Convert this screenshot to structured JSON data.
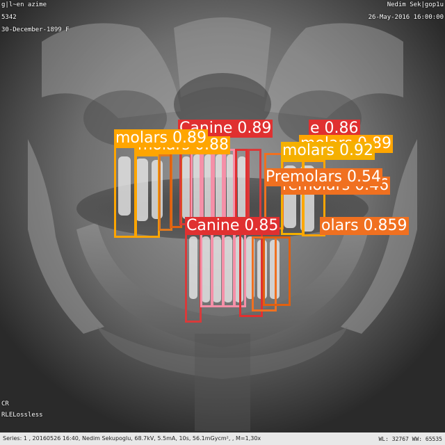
{
  "overlay": {
    "top_left_line1": "g|l~en azime",
    "top_left_line2": "5342",
    "top_left_line3": "30-December-1899 F",
    "top_right_line1": "Nedim Sek|gop1u",
    "top_right_line2": "26-May-2016 16:00:00",
    "bottom_left_line1": "CR",
    "bottom_left_line2": "RLELossless",
    "bottom_bar_text": "Series: 1 , 20160526 16:40, Nedim Sekupoglu, 68.7kV, 5.5mA, 10s, 56.1mGycm², , M=1,30x",
    "wl_text": "WL: 32767  WW: 65535"
  },
  "detections": {
    "canine_top": "Canine 0.89",
    "canine_top_tail": "e 0.86",
    "molars_left": "molars 0.89",
    "molars_left_shadow": "molars 0.88",
    "molars_right": "molars 0.92",
    "molars_right_back": "molars 0.89",
    "premolars_right": "Premolars 0.54",
    "premolars_right_shadow": "remolars 0.46",
    "canine_mid": "Canine 0.85",
    "molars_lower_right": "olars 0.859"
  },
  "colors": {
    "molar": "#FFA500",
    "molar_light": "#F5B000",
    "premolar": "#F07020",
    "canine": "#E03030",
    "incisor_pink": "#F590A8",
    "incisor_red": "#D83A3A",
    "orange_dark": "#E06010"
  }
}
